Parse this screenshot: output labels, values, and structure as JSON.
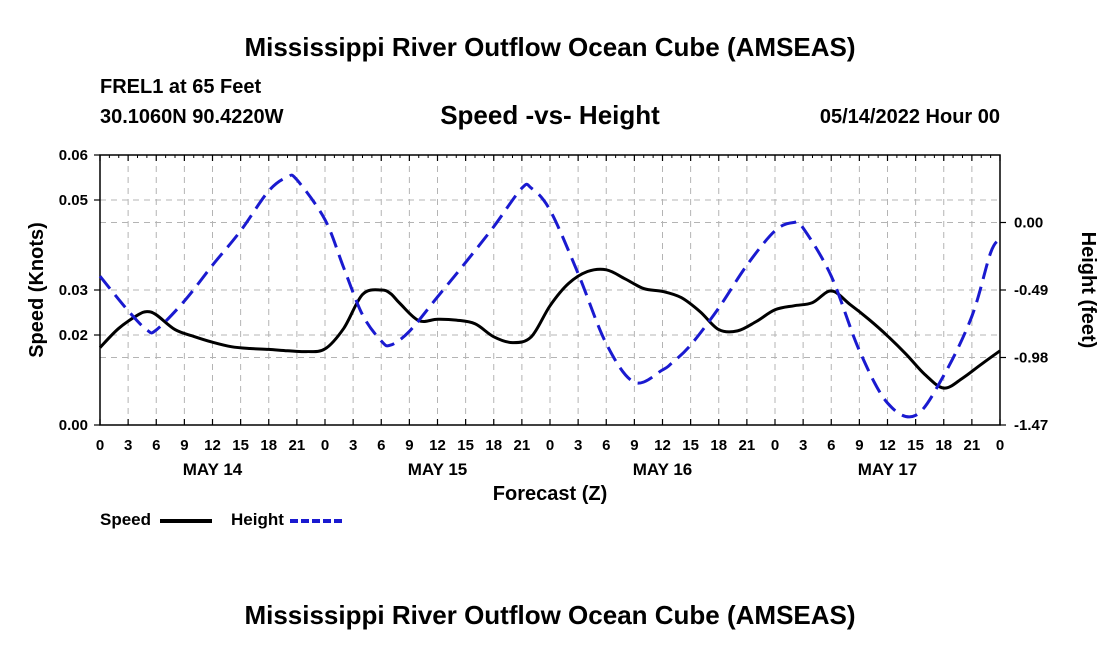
{
  "header": {
    "title": "Mississippi River Outflow Ocean Cube (AMSEAS)",
    "station": "FREL1 at 65 Feet",
    "coords": "30.1060N  90.4220W",
    "subtitle": "Speed -vs- Height",
    "date": "05/14/2022 Hour 00"
  },
  "footer": {
    "title": "Mississippi River Outflow Ocean Cube (AMSEAS)"
  },
  "legend": {
    "speed": "Speed",
    "height": "Height"
  },
  "colors": {
    "speed": "#000000",
    "height": "#1a1ad0",
    "grid": "#b4b4b4"
  },
  "chart_data": {
    "type": "line",
    "title": "Speed -vs- Height",
    "xlabel": "Forecast (Z)",
    "ylabel": "Speed (Knots)",
    "y2label": "Height (feet)",
    "xlim": [
      0,
      96
    ],
    "ylim": [
      0.0,
      0.06
    ],
    "y2lim": [
      -1.47,
      0.49
    ],
    "x_ticks": [
      0,
      3,
      6,
      9,
      12,
      15,
      18,
      21,
      24,
      27,
      30,
      33,
      36,
      39,
      42,
      45,
      48,
      51,
      54,
      57,
      60,
      63,
      66,
      69,
      72,
      75,
      78,
      81,
      84,
      87,
      90,
      93,
      96
    ],
    "x_tick_labels": [
      "0",
      "3",
      "6",
      "9",
      "12",
      "15",
      "18",
      "21",
      "0",
      "3",
      "6",
      "9",
      "12",
      "15",
      "18",
      "21",
      "0",
      "3",
      "6",
      "9",
      "12",
      "15",
      "18",
      "21",
      "0",
      "3",
      "6",
      "9",
      "12",
      "15",
      "18",
      "21",
      "0"
    ],
    "day_labels": [
      {
        "x": 12,
        "label": "MAY 14"
      },
      {
        "x": 36,
        "label": "MAY 15"
      },
      {
        "x": 60,
        "label": "MAY 16"
      },
      {
        "x": 84,
        "label": "MAY 17"
      }
    ],
    "y_ticks": [
      0.0,
      0.02,
      0.03,
      0.05,
      0.06
    ],
    "y_tick_labels": [
      "0.00",
      "0.02",
      "0.03",
      "0.05",
      "0.06"
    ],
    "y2_ticks": [
      0.0,
      -0.49,
      -0.98,
      -1.47
    ],
    "y2_tick_labels": [
      "0.00",
      "-0.49",
      "-0.98",
      "-1.47"
    ],
    "grid": true,
    "series": [
      {
        "name": "Speed",
        "axis": "left",
        "x": [
          0,
          2,
          4,
          5,
          6,
          8,
          10,
          12,
          14,
          16,
          18,
          20,
          22,
          24,
          26,
          28,
          30,
          31,
          32,
          34,
          36,
          38,
          40,
          42,
          44,
          46,
          48,
          50,
          52,
          54,
          56,
          58,
          60,
          62,
          64,
          66,
          68,
          70,
          72,
          74,
          76,
          78,
          80,
          82,
          84,
          86,
          88,
          90,
          92,
          94,
          96
        ],
        "y": [
          0.0172,
          0.0215,
          0.0244,
          0.0252,
          0.0245,
          0.0212,
          0.0197,
          0.0184,
          0.0174,
          0.017,
          0.0168,
          0.0165,
          0.0163,
          0.0169,
          0.0215,
          0.029,
          0.03,
          0.0292,
          0.027,
          0.0232,
          0.0235,
          0.0233,
          0.0225,
          0.0196,
          0.0183,
          0.0196,
          0.0265,
          0.0315,
          0.0341,
          0.0345,
          0.0325,
          0.0303,
          0.0297,
          0.0283,
          0.0252,
          0.0212,
          0.0209,
          0.023,
          0.0256,
          0.0265,
          0.0272,
          0.0298,
          0.0268,
          0.0235,
          0.0198,
          0.0157,
          0.0112,
          0.0082,
          0.0104,
          0.0135,
          0.0165
        ]
      },
      {
        "name": "Height",
        "axis": "right",
        "x": [
          0,
          3,
          5,
          6,
          9,
          12,
          15,
          18,
          20,
          21,
          24,
          26,
          28,
          30,
          31,
          33,
          36,
          39,
          42,
          45,
          46,
          48,
          51,
          54,
          57,
          60,
          61,
          63,
          66,
          69,
          72,
          74,
          75,
          78,
          81,
          84,
          87,
          90,
          93,
          95,
          96
        ],
        "y": [
          -0.39,
          -0.64,
          -0.78,
          -0.78,
          -0.57,
          -0.31,
          -0.06,
          0.23,
          0.33,
          0.31,
          0.02,
          -0.33,
          -0.67,
          -0.86,
          -0.89,
          -0.79,
          -0.54,
          -0.29,
          -0.03,
          0.25,
          0.25,
          0.09,
          -0.37,
          -0.88,
          -1.16,
          -1.07,
          -1.02,
          -0.89,
          -0.62,
          -0.31,
          -0.06,
          0.0,
          -0.04,
          -0.39,
          -0.93,
          -1.31,
          -1.4,
          -1.11,
          -0.68,
          -0.22,
          -0.12
        ]
      }
    ]
  }
}
